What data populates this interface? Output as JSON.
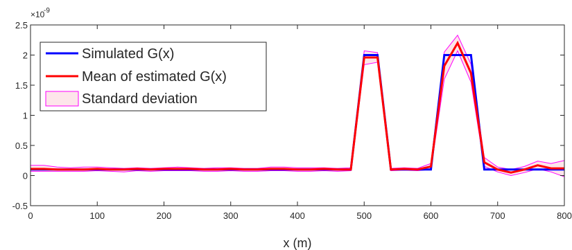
{
  "chart_data": {
    "type": "line",
    "title": "",
    "xlabel": "x (m)",
    "ylabel": "",
    "y_exponent_label": "×10",
    "y_exponent_power": "-9",
    "xlim": [
      0,
      800
    ],
    "ylim": [
      -0.5,
      2.5
    ],
    "x_ticks": [
      0,
      100,
      200,
      300,
      400,
      500,
      600,
      700,
      800
    ],
    "x_tick_labels": [
      "0",
      "100",
      "200",
      "300",
      "400",
      "500",
      "600",
      "700",
      "800"
    ],
    "y_ticks": [
      -0.5,
      0,
      0.5,
      1,
      1.5,
      2,
      2.5
    ],
    "y_tick_labels": [
      "-0.5",
      "0",
      "0.5",
      "1",
      "1.5",
      "2",
      "2.5"
    ],
    "grid": false,
    "legend_position": "top-left",
    "x": [
      0,
      20,
      40,
      60,
      80,
      100,
      120,
      140,
      160,
      180,
      200,
      220,
      240,
      260,
      280,
      300,
      320,
      340,
      360,
      380,
      400,
      420,
      440,
      460,
      480,
      500,
      520,
      540,
      560,
      580,
      600,
      620,
      640,
      660,
      680,
      700,
      720,
      740,
      760,
      780,
      800
    ],
    "series": [
      {
        "name": "Simulated G(x)",
        "color": "#0000ff",
        "values": [
          0.1,
          0.1,
          0.1,
          0.1,
          0.1,
          0.1,
          0.1,
          0.1,
          0.1,
          0.1,
          0.1,
          0.1,
          0.1,
          0.1,
          0.1,
          0.1,
          0.1,
          0.1,
          0.1,
          0.1,
          0.1,
          0.1,
          0.1,
          0.1,
          0.1,
          2.0,
          2.0,
          0.1,
          0.1,
          0.1,
          0.1,
          2.0,
          2.0,
          2.0,
          0.1,
          0.1,
          0.1,
          0.1,
          0.1,
          0.1,
          0.1
        ]
      },
      {
        "name": "Mean of estimated G(x)",
        "color": "#ff0000",
        "values": [
          0.11,
          0.11,
          0.1,
          0.1,
          0.1,
          0.11,
          0.1,
          0.1,
          0.11,
          0.1,
          0.11,
          0.11,
          0.11,
          0.1,
          0.1,
          0.11,
          0.1,
          0.1,
          0.11,
          0.11,
          0.1,
          0.1,
          0.11,
          0.1,
          0.1,
          1.96,
          1.96,
          0.1,
          0.11,
          0.1,
          0.15,
          1.82,
          2.2,
          1.7,
          0.22,
          0.1,
          0.05,
          0.1,
          0.17,
          0.12,
          0.12
        ]
      }
    ],
    "band": {
      "name": "Standard deviation",
      "edge_color": "#ff00ff",
      "fill_color": "#fde5ea",
      "upper": [
        0.17,
        0.17,
        0.14,
        0.13,
        0.14,
        0.14,
        0.13,
        0.12,
        0.13,
        0.12,
        0.13,
        0.14,
        0.13,
        0.12,
        0.13,
        0.13,
        0.12,
        0.12,
        0.14,
        0.14,
        0.13,
        0.13,
        0.13,
        0.12,
        0.13,
        2.07,
        2.04,
        0.12,
        0.13,
        0.12,
        0.2,
        2.05,
        2.33,
        1.85,
        0.3,
        0.14,
        0.1,
        0.15,
        0.24,
        0.2,
        0.25
      ],
      "lower": [
        0.07,
        0.07,
        0.07,
        0.07,
        0.07,
        0.08,
        0.07,
        0.06,
        0.08,
        0.07,
        0.08,
        0.08,
        0.08,
        0.07,
        0.07,
        0.08,
        0.07,
        0.07,
        0.08,
        0.08,
        0.07,
        0.07,
        0.08,
        0.07,
        0.08,
        1.84,
        1.88,
        0.08,
        0.09,
        0.08,
        0.1,
        1.6,
        2.07,
        1.55,
        0.15,
        0.06,
        0.0,
        0.05,
        0.11,
        0.06,
        -0.02
      ]
    }
  }
}
